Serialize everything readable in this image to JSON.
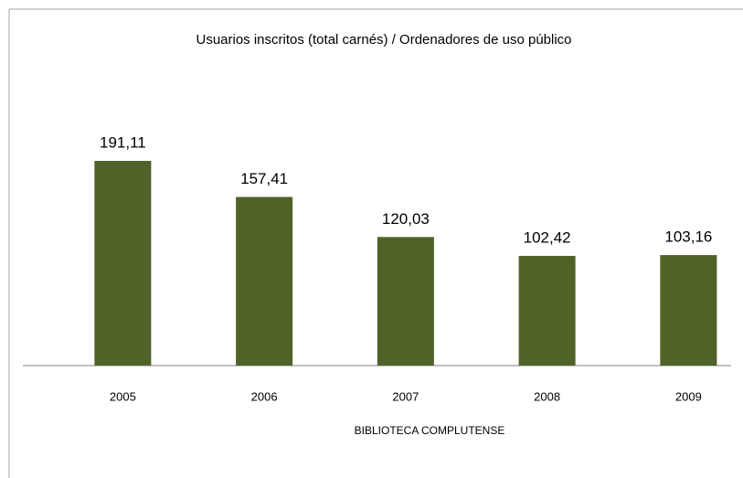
{
  "chart_data": {
    "type": "bar",
    "title": "Usuarios inscritos (total carnés) / Ordenadores de uso público",
    "x_label": "BIBLIOTECA COMPLUTENSE",
    "categories": [
      "2005",
      "2006",
      "2007",
      "2008",
      "2009"
    ],
    "values": [
      191.11,
      157.41,
      120.03,
      102.42,
      103.16
    ],
    "value_labels": [
      "191,11",
      "157,41",
      "120,03",
      "102,42",
      "103,16"
    ],
    "color": "#4f6228",
    "ylim": [
      0,
      250
    ]
  }
}
